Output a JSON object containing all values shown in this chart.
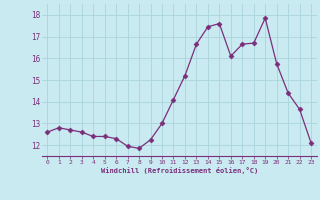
{
  "x": [
    0,
    1,
    2,
    3,
    4,
    5,
    6,
    7,
    8,
    9,
    10,
    11,
    12,
    13,
    14,
    15,
    16,
    17,
    18,
    19,
    20,
    21,
    22,
    23
  ],
  "y": [
    12.6,
    12.8,
    12.7,
    12.6,
    12.4,
    12.4,
    12.3,
    11.95,
    11.85,
    12.25,
    13.0,
    14.1,
    15.2,
    16.65,
    17.45,
    17.6,
    16.1,
    16.65,
    16.7,
    17.85,
    15.75,
    14.4,
    13.65,
    12.1
  ],
  "line_color": "#7b2f7b",
  "marker": "D",
  "marker_size": 2.5,
  "bg_color": "#c8eaf0",
  "grid_color": "#aad4dc",
  "xlabel": "Windchill (Refroidissement éolien,°C)",
  "xlabel_color": "#7b2f7b",
  "tick_color": "#7b2f7b",
  "ylim": [
    11.5,
    18.5
  ],
  "yticks": [
    12,
    13,
    14,
    15,
    16,
    17,
    18
  ],
  "xlim": [
    -0.5,
    23.5
  ],
  "xticks": [
    0,
    1,
    2,
    3,
    4,
    5,
    6,
    7,
    8,
    9,
    10,
    11,
    12,
    13,
    14,
    15,
    16,
    17,
    18,
    19,
    20,
    21,
    22,
    23
  ],
  "spine_color": "#7b2f7b",
  "fig_width": 3.2,
  "fig_height": 2.0,
  "dpi": 100
}
